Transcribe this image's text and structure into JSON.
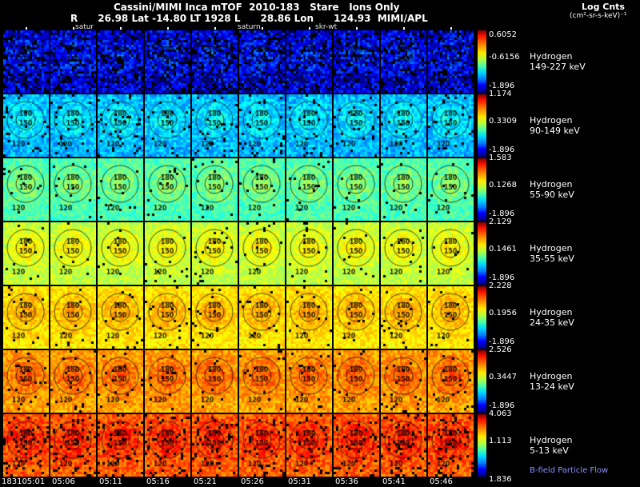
{
  "header": {
    "title": "Cassini/MIMI Inca mTOF  2010-183   Stare   Ions Only",
    "subtitle": "R      26.98 Lat -14.80 LT 1928 L      28.86 Lon      124.93  MIMI/APL",
    "annotations": [
      "satur",
      "saturn",
      "skr-wt"
    ]
  },
  "legend": {
    "title": "Log Cnts",
    "units": "(cm²-sr-s-keV)⁻¹"
  },
  "footer": {
    "note": "B-field Particle Flow"
  },
  "chart_data": {
    "type": "heatmap",
    "title": "Cassini/MIMI Inca mTOF 2010-183 Stare Ions Only",
    "colormap": "jet",
    "colorbar_title": "Log Cnts",
    "colorbar_units": "(cm²-sr-s-keV)⁻¹",
    "n_columns": 10,
    "x_labels": [
      "183105:01",
      "05:06",
      "05:11",
      "05:16",
      "05:21",
      "05:26",
      "05:31",
      "05:36",
      "05:41",
      "05:46"
    ],
    "contour_labels": [
      "180",
      "150",
      "120"
    ],
    "rows": [
      {
        "species": "Hydrogen",
        "energy": "149-227 keV",
        "ticks": [
          "0.6052",
          "-0.6156",
          "-1.896"
        ],
        "level": 0.09,
        "noise": 0.1,
        "dropout": 0.22
      },
      {
        "species": "Hydrogen",
        "energy": "90-149 keV",
        "ticks": [
          "1.174",
          "0.3309",
          "-1.896"
        ],
        "level": 0.3,
        "noise": 0.07,
        "dropout": 0.05
      },
      {
        "species": "Hydrogen",
        "energy": "55-90 keV",
        "ticks": [
          "1.583",
          "0.1268",
          "-1.896"
        ],
        "level": 0.44,
        "noise": 0.06,
        "dropout": 0.02
      },
      {
        "species": "Hydrogen",
        "energy": "35-55 keV",
        "ticks": [
          "2.129",
          "0.1461",
          "-1.896"
        ],
        "level": 0.56,
        "noise": 0.05,
        "dropout": 0.02
      },
      {
        "species": "Hydrogen",
        "energy": "24-35 keV",
        "ticks": [
          "2.228",
          "0.1956",
          "-1.896"
        ],
        "level": 0.64,
        "noise": 0.05,
        "dropout": 0.03
      },
      {
        "species": "Hydrogen",
        "energy": "13-24 keV",
        "ticks": [
          "2.526",
          "0.3447",
          "-1.896"
        ],
        "level": 0.71,
        "noise": 0.06,
        "dropout": 0.03
      },
      {
        "species": "Hydrogen",
        "energy": "5-13 keV",
        "ticks": [
          "4.063",
          "1.113",
          "1.836"
        ],
        "level": 0.78,
        "noise": 0.07,
        "dropout": 0.1
      }
    ]
  }
}
